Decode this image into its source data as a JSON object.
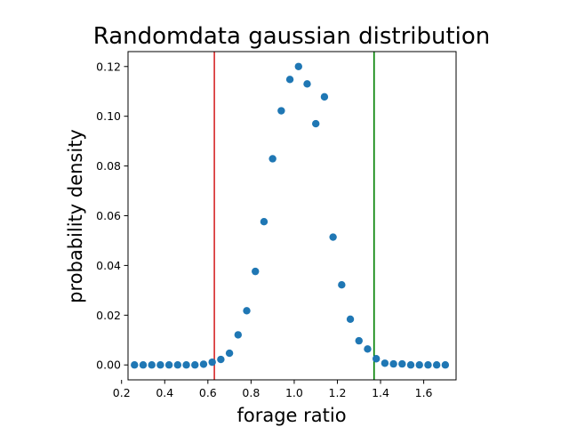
{
  "chart_data": {
    "type": "scatter",
    "title": "Randomdata gaussian distribution",
    "xlabel": "forage ratio",
    "ylabel": "probability density",
    "xlim": [
      0.23,
      1.75
    ],
    "ylim": [
      -0.006,
      0.126
    ],
    "xticks": [
      0.2,
      0.4,
      0.6,
      0.8,
      1.0,
      1.2,
      1.4,
      1.6
    ],
    "xtick_labels": [
      "0.2",
      "0.4",
      "0.6",
      "0.8",
      "1.0",
      "1.2",
      "1.4",
      "1.6"
    ],
    "yticks": [
      0.0,
      0.02,
      0.04,
      0.06,
      0.08,
      0.1,
      0.12
    ],
    "ytick_labels": [
      "0.00",
      "0.02",
      "0.04",
      "0.06",
      "0.08",
      "0.10",
      "0.12"
    ],
    "grid": false,
    "marker_color": "#1f77b4",
    "series": [
      {
        "x": [
          0.26,
          0.3,
          0.34,
          0.38,
          0.42,
          0.46,
          0.5,
          0.54,
          0.58,
          0.62,
          0.66,
          0.7,
          0.74,
          0.78,
          0.82,
          0.86,
          0.9,
          0.94,
          0.98,
          1.02,
          1.06,
          1.1,
          1.14,
          1.18,
          1.22,
          1.26,
          1.3,
          1.34,
          1.38,
          1.42,
          1.46,
          1.5,
          1.54,
          1.58,
          1.62,
          1.66,
          1.7
        ],
        "y": [
          0.0,
          0.0,
          0.0,
          0.0,
          0.0,
          0.0,
          0.0,
          0.0,
          0.0003,
          0.0011,
          0.0022,
          0.0047,
          0.0121,
          0.0218,
          0.0376,
          0.0576,
          0.0829,
          0.1022,
          0.1148,
          0.12,
          0.113,
          0.097,
          0.1078,
          0.0514,
          0.0322,
          0.0184,
          0.0097,
          0.0064,
          0.0025,
          0.0007,
          0.0004,
          0.0004,
          0.0,
          0.0,
          0.0,
          0.0,
          0.0
        ]
      }
    ],
    "vlines": [
      {
        "x": 0.63,
        "color": "#d62728"
      },
      {
        "x": 1.37,
        "color": "#008000"
      }
    ]
  }
}
